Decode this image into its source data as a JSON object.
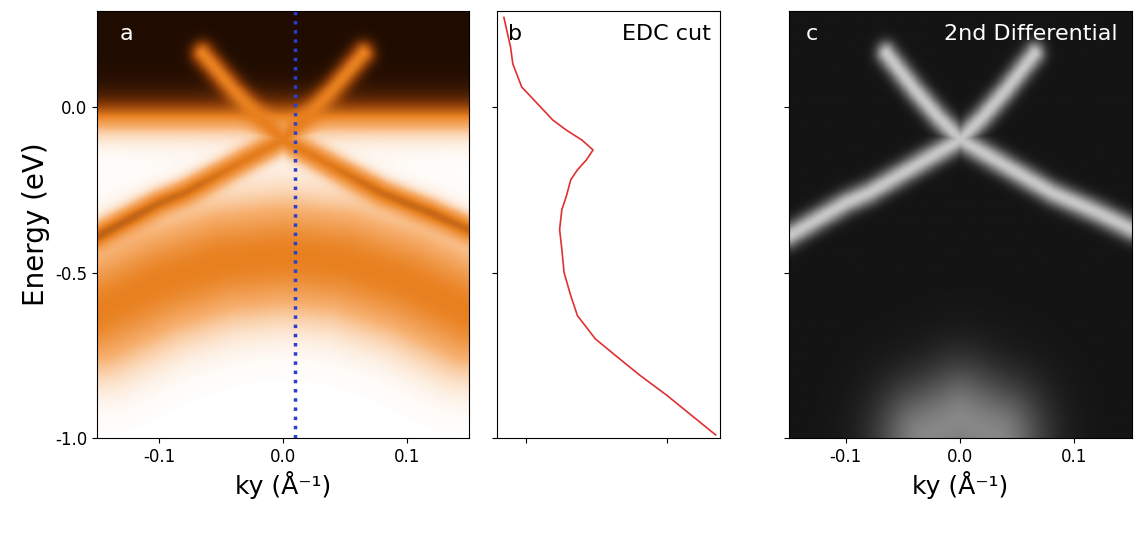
{
  "chart_data": [
    {
      "type": "image",
      "title": "a",
      "xlabel": "ky (Å⁻¹)",
      "ylabel": "Energy (eV)",
      "xlim": [
        -0.15,
        0.15
      ],
      "ylim": [
        -1.0,
        0.29
      ],
      "xticks": [
        {
          "value": -0.1,
          "label": "-0.1"
        },
        {
          "value": 0,
          "label": "0.0"
        },
        {
          "value": 0.1,
          "label": "0.1"
        }
      ],
      "yticks": [
        {
          "value": -1,
          "label": "-1.0"
        },
        {
          "value": -0.5,
          "label": "-0.5"
        },
        {
          "value": 0,
          "label": "0.0"
        }
      ],
      "bands": [
        {
          "type": "cone",
          "k": [
            -0.15,
            -0.12,
            -0.1,
            -0.08,
            -0.06,
            -0.04,
            -0.02,
            0,
            0.02,
            0.04,
            0.06,
            0.08,
            0.1,
            0.12,
            0.15
          ],
          "energy": [
            -0.39,
            -0.33,
            -0.29,
            -0.26,
            -0.22,
            -0.18,
            -0.14,
            -0.1,
            -0.14,
            -0.18,
            -0.22,
            -0.26,
            -0.29,
            -0.32,
            -0.37
          ]
        },
        {
          "type": "cone",
          "k": [
            -0.065,
            -0.04,
            -0.02,
            0
          ],
          "energy": [
            0.16,
            0.05,
            -0.03,
            -0.1
          ]
        },
        {
          "type": "cone",
          "k": [
            0,
            0.02,
            0.04,
            0.065
          ],
          "energy": [
            -0.1,
            -0.03,
            0.05,
            0.16
          ]
        },
        {
          "type": "valence",
          "k": [
            -0.15,
            -0.1,
            -0.05,
            0,
            0.05,
            0.1,
            0.15
          ],
          "energy": [
            -0.62,
            -0.53,
            -0.47,
            -0.45,
            -0.47,
            -0.53,
            -0.62
          ]
        }
      ],
      "edc_k": 0.01,
      "color": "#2a3fd0",
      "line_style": "dotted"
    },
    {
      "type": "line",
      "title": "b",
      "annotation": "EDC cut",
      "energy": [
        0.27,
        0.24,
        0.18,
        0.13,
        0.06,
        0.01,
        -0.04,
        -0.07,
        -0.1,
        -0.13,
        -0.16,
        -0.19,
        -0.22,
        -0.27,
        -0.31,
        -0.37,
        -0.43,
        -0.5,
        -0.57,
        -0.63,
        -0.7,
        -0.75,
        -0.81,
        -0.87,
        -0.93,
        -0.99
      ],
      "intensity": [
        0.03,
        0.04,
        0.06,
        0.07,
        0.11,
        0.18,
        0.25,
        0.31,
        0.38,
        0.43,
        0.4,
        0.36,
        0.33,
        0.31,
        0.29,
        0.28,
        0.29,
        0.3,
        0.33,
        0.36,
        0.44,
        0.53,
        0.64,
        0.76,
        0.87,
        0.98
      ],
      "xlim": [
        0,
        1
      ],
      "ylim": [
        -1.0,
        0.29
      ],
      "xticks": [
        0.13,
        0.76
      ],
      "yticks": [
        -1,
        -0.5,
        0
      ],
      "tick_labels": false,
      "color": "#e03030"
    },
    {
      "type": "image",
      "title": "c",
      "annotation": "2nd Differential",
      "xlabel": "ky (Å⁻¹)",
      "xlim": [
        -0.15,
        0.15
      ],
      "ylim": [
        -1.0,
        0.29
      ],
      "xticks": [
        {
          "value": -0.1,
          "label": "-0.1"
        },
        {
          "value": 0,
          "label": "0.0"
        },
        {
          "value": 0.1,
          "label": "0.1"
        }
      ],
      "yticks": [
        -1,
        -0.5,
        0
      ],
      "tick_labels": "x",
      "bands": [
        {
          "type": "cone",
          "k": [
            -0.15,
            -0.12,
            -0.1,
            -0.08,
            -0.06,
            -0.04,
            -0.02,
            0,
            0.02,
            0.04,
            0.06,
            0.08,
            0.1,
            0.12,
            0.15
          ],
          "energy": [
            -0.39,
            -0.33,
            -0.29,
            -0.26,
            -0.22,
            -0.18,
            -0.14,
            -0.1,
            -0.14,
            -0.18,
            -0.22,
            -0.26,
            -0.29,
            -0.32,
            -0.37
          ]
        },
        {
          "type": "cone",
          "k": [
            -0.065,
            -0.04,
            -0.02,
            0
          ],
          "energy": [
            0.16,
            0.05,
            -0.03,
            -0.1
          ]
        },
        {
          "type": "cone",
          "k": [
            0,
            0.02,
            0.04,
            0.065
          ],
          "energy": [
            -0.1,
            -0.03,
            0.05,
            0.16
          ]
        },
        {
          "type": "valence",
          "k": [
            -0.03,
            0,
            0.03
          ],
          "energy": [
            -1.0,
            -0.95,
            -1.0
          ]
        }
      ]
    }
  ]
}
